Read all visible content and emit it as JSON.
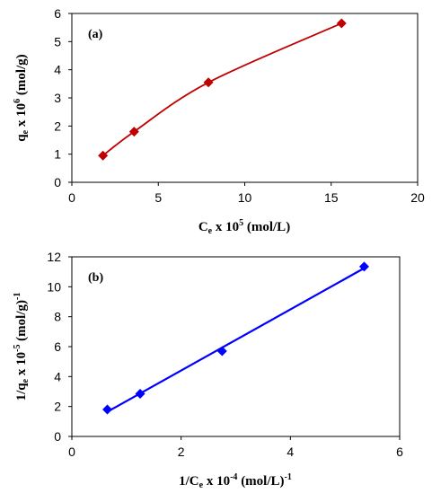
{
  "chart_data": [
    {
      "type": "line",
      "panel_label": "(a)",
      "xlabel": "C_e x 10^5 (mol/L)",
      "xlabel_parts": {
        "main": "C",
        "sub": "e",
        "mid": " x 10",
        "sup": "5",
        "end": " (mol/L)"
      },
      "ylabel": "q_e x 10^6 (mol/g)",
      "ylabel_parts": {
        "main": "q",
        "sub": "e",
        "mid": " x 10",
        "sup": "6",
        "end": " (mol/g)"
      },
      "xlim": [
        0,
        20
      ],
      "ylim": [
        0,
        6
      ],
      "xticks": [
        "0",
        "5",
        "10",
        "15",
        "20"
      ],
      "yticks": [
        "0",
        "1",
        "2",
        "3",
        "4",
        "5",
        "6"
      ],
      "grid": false,
      "series": [
        {
          "x": [
            1.8,
            3.6,
            7.9,
            15.6
          ],
          "y": [
            0.95,
            1.8,
            3.55,
            5.65
          ],
          "marker": "diamond",
          "color": "#c00000",
          "smooth": true
        }
      ]
    },
    {
      "type": "scatter",
      "panel_label": "(b)",
      "xlabel": "1/C_e x 10^-4 (mol/L)^-1",
      "xlabel_parts": {
        "main": "1/C",
        "sub": "e",
        "mid": " x 10",
        "sup": "-4",
        "end": " (mol/L)",
        "sup2": "-1"
      },
      "ylabel": "1/q_e x 10^-5 (mol/g)^-1",
      "ylabel_parts": {
        "main": "1/q",
        "sub": "e",
        "mid": " x 10",
        "sup": "-5",
        "end": " (mol/g)",
        "sup2": "-1"
      },
      "xlim": [
        0,
        6
      ],
      "ylim": [
        0,
        12
      ],
      "xticks": [
        "0",
        "2",
        "4",
        "6"
      ],
      "yticks": [
        "0",
        "2",
        "4",
        "6",
        "8",
        "10",
        "12"
      ],
      "grid": false,
      "series": [
        {
          "x": [
            0.65,
            1.25,
            2.75,
            5.35
          ],
          "y": [
            1.8,
            2.85,
            5.7,
            11.35
          ],
          "marker": "diamond",
          "color": "#0000ff",
          "trendline": true
        }
      ]
    }
  ]
}
